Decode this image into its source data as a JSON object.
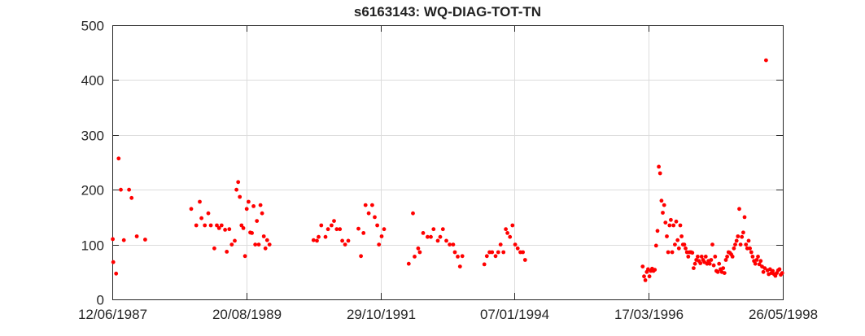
{
  "chart_data": {
    "type": "scatter",
    "title": "s6163143: WQ-DIAG-TOT-TN",
    "xlabel": "",
    "ylabel": "",
    "xlim": [
      "1987-06-12",
      "1998-05-26"
    ],
    "ylim": [
      0,
      500
    ],
    "grid": true,
    "legend": false,
    "marker_color": "#ff0000",
    "x_ticks": [
      "12/06/1987",
      "20/08/1989",
      "29/10/1991",
      "07/01/1994",
      "17/03/1996",
      "26/05/1998"
    ],
    "y_ticks": [
      "0",
      "100",
      "200",
      "300",
      "400",
      "500"
    ],
    "series": [
      {
        "points": [
          [
            "1987-06-15",
            110
          ],
          [
            "1987-06-18",
            68
          ],
          [
            "1987-07-05",
            47
          ],
          [
            "1987-07-20",
            257
          ],
          [
            "1987-08-02",
            200
          ],
          [
            "1987-08-20",
            108
          ],
          [
            "1987-09-20",
            200
          ],
          [
            "1987-10-05",
            185
          ],
          [
            "1987-11-05",
            115
          ],
          [
            "1987-12-25",
            109
          ],
          [
            "1988-09-25",
            165
          ],
          [
            "1988-10-25",
            135
          ],
          [
            "1988-11-15",
            178
          ],
          [
            "1988-11-25",
            148
          ],
          [
            "1988-12-15",
            135
          ],
          [
            "1989-01-05",
            157
          ],
          [
            "1989-01-20",
            135
          ],
          [
            "1989-02-10",
            93
          ],
          [
            "1989-02-25",
            135
          ],
          [
            "1989-03-10",
            130
          ],
          [
            "1989-03-25",
            135
          ],
          [
            "1989-04-15",
            127
          ],
          [
            "1989-04-25",
            87
          ],
          [
            "1989-05-10",
            128
          ],
          [
            "1989-05-25",
            100
          ],
          [
            "1989-06-12",
            107
          ],
          [
            "1989-06-22",
            200
          ],
          [
            "1989-07-02",
            214
          ],
          [
            "1989-07-12",
            187
          ],
          [
            "1989-07-22",
            135
          ],
          [
            "1989-08-02",
            130
          ],
          [
            "1989-08-12",
            79
          ],
          [
            "1989-08-22",
            165
          ],
          [
            "1989-09-02",
            178
          ],
          [
            "1989-09-12",
            122
          ],
          [
            "1989-09-22",
            121
          ],
          [
            "1989-10-02",
            170
          ],
          [
            "1989-10-12",
            100
          ],
          [
            "1989-10-22",
            143
          ],
          [
            "1989-11-02",
            100
          ],
          [
            "1989-11-12",
            172
          ],
          [
            "1989-11-22",
            157
          ],
          [
            "1989-12-02",
            115
          ],
          [
            "1989-12-12",
            93
          ],
          [
            "1989-12-22",
            108
          ],
          [
            "1990-01-05",
            100
          ],
          [
            "1990-09-25",
            108
          ],
          [
            "1990-10-15",
            107
          ],
          [
            "1990-10-25",
            114
          ],
          [
            "1990-11-10",
            135
          ],
          [
            "1990-12-05",
            114
          ],
          [
            "1990-12-20",
            128
          ],
          [
            "1991-01-10",
            135
          ],
          [
            "1991-01-25",
            143
          ],
          [
            "1991-02-10",
            128
          ],
          [
            "1991-03-01",
            128
          ],
          [
            "1991-03-15",
            107
          ],
          [
            "1991-04-01",
            100
          ],
          [
            "1991-04-20",
            107
          ],
          [
            "1991-06-20",
            129
          ],
          [
            "1991-07-05",
            79
          ],
          [
            "1991-07-20",
            121
          ],
          [
            "1991-08-01",
            172
          ],
          [
            "1991-08-20",
            157
          ],
          [
            "1991-09-10",
            172
          ],
          [
            "1991-09-25",
            150
          ],
          [
            "1991-10-10",
            135
          ],
          [
            "1991-10-20",
            100
          ],
          [
            "1991-11-05",
            115
          ],
          [
            "1991-11-20",
            128
          ],
          [
            "1992-04-15",
            65
          ],
          [
            "1992-05-10",
            157
          ],
          [
            "1992-05-20",
            78
          ],
          [
            "1992-06-10",
            93
          ],
          [
            "1992-06-20",
            86
          ],
          [
            "1992-07-10",
            121
          ],
          [
            "1992-08-05",
            114
          ],
          [
            "1992-08-25",
            114
          ],
          [
            "1992-09-10",
            128
          ],
          [
            "1992-10-05",
            107
          ],
          [
            "1992-10-20",
            114
          ],
          [
            "1992-11-05",
            128
          ],
          [
            "1992-11-25",
            107
          ],
          [
            "1992-12-15",
            100
          ],
          [
            "1993-01-05",
            100
          ],
          [
            "1993-01-15",
            86
          ],
          [
            "1993-02-01",
            78
          ],
          [
            "1993-02-15",
            60
          ],
          [
            "1993-03-01",
            79
          ],
          [
            "1993-07-10",
            64
          ],
          [
            "1993-07-25",
            79
          ],
          [
            "1993-08-10",
            86
          ],
          [
            "1993-08-25",
            86
          ],
          [
            "1993-09-15",
            79
          ],
          [
            "1993-10-01",
            86
          ],
          [
            "1993-10-15",
            100
          ],
          [
            "1993-11-01",
            86
          ],
          [
            "1993-11-15",
            128
          ],
          [
            "1993-11-25",
            121
          ],
          [
            "1993-12-10",
            114
          ],
          [
            "1993-12-25",
            135
          ],
          [
            "1994-01-10",
            100
          ],
          [
            "1994-01-25",
            93
          ],
          [
            "1994-02-10",
            86
          ],
          [
            "1994-02-25",
            86
          ],
          [
            "1994-03-10",
            72
          ],
          [
            "1996-02-10",
            60
          ],
          [
            "1996-02-18",
            42
          ],
          [
            "1996-02-26",
            35
          ],
          [
            "1996-03-05",
            50
          ],
          [
            "1996-03-13",
            55
          ],
          [
            "1996-03-21",
            42
          ],
          [
            "1996-03-29",
            52
          ],
          [
            "1996-04-06",
            56
          ],
          [
            "1996-04-14",
            52
          ],
          [
            "1996-04-22",
            54
          ],
          [
            "1996-04-30",
            98
          ],
          [
            "1996-05-08",
            125
          ],
          [
            "1996-05-16",
            242
          ],
          [
            "1996-05-24",
            230
          ],
          [
            "1996-06-01",
            180
          ],
          [
            "1996-06-09",
            158
          ],
          [
            "1996-06-17",
            172
          ],
          [
            "1996-06-25",
            140
          ],
          [
            "1996-07-03",
            115
          ],
          [
            "1996-07-11",
            86
          ],
          [
            "1996-07-19",
            135
          ],
          [
            "1996-07-27",
            145
          ],
          [
            "1996-08-04",
            86
          ],
          [
            "1996-08-12",
            135
          ],
          [
            "1996-08-20",
            100
          ],
          [
            "1996-08-28",
            142
          ],
          [
            "1996-09-05",
            108
          ],
          [
            "1996-09-13",
            93
          ],
          [
            "1996-09-21",
            135
          ],
          [
            "1996-09-29",
            115
          ],
          [
            "1996-10-07",
            100
          ],
          [
            "1996-10-15",
            100
          ],
          [
            "1996-10-23",
            93
          ],
          [
            "1996-10-31",
            86
          ],
          [
            "1996-11-08",
            78
          ],
          [
            "1996-11-16",
            86
          ],
          [
            "1996-11-24",
            86
          ],
          [
            "1996-12-02",
            85
          ],
          [
            "1996-12-10",
            57
          ],
          [
            "1996-12-18",
            65
          ],
          [
            "1996-12-26",
            72
          ],
          [
            "1997-01-03",
            78
          ],
          [
            "1997-01-11",
            70
          ],
          [
            "1997-01-19",
            66
          ],
          [
            "1997-01-27",
            78
          ],
          [
            "1997-02-04",
            72
          ],
          [
            "1997-02-12",
            68
          ],
          [
            "1997-02-20",
            78
          ],
          [
            "1997-02-28",
            65
          ],
          [
            "1997-03-08",
            70
          ],
          [
            "1997-03-16",
            65
          ],
          [
            "1997-03-24",
            72
          ],
          [
            "1997-04-01",
            100
          ],
          [
            "1997-04-09",
            62
          ],
          [
            "1997-04-17",
            78
          ],
          [
            "1997-04-25",
            52
          ],
          [
            "1997-05-03",
            50
          ],
          [
            "1997-05-11",
            65
          ],
          [
            "1997-05-19",
            55
          ],
          [
            "1997-05-27",
            50
          ],
          [
            "1997-06-04",
            57
          ],
          [
            "1997-06-12",
            48
          ],
          [
            "1997-06-20",
            72
          ],
          [
            "1997-06-28",
            78
          ],
          [
            "1997-07-06",
            86
          ],
          [
            "1997-07-14",
            85
          ],
          [
            "1997-07-22",
            82
          ],
          [
            "1997-07-30",
            78
          ],
          [
            "1997-08-07",
            93
          ],
          [
            "1997-08-15",
            100
          ],
          [
            "1997-08-23",
            107
          ],
          [
            "1997-08-31",
            115
          ],
          [
            "1997-09-08",
            165
          ],
          [
            "1997-09-16",
            100
          ],
          [
            "1997-09-24",
            114
          ],
          [
            "1997-10-02",
            122
          ],
          [
            "1997-10-10",
            150
          ],
          [
            "1997-10-18",
            100
          ],
          [
            "1997-10-26",
            93
          ],
          [
            "1997-11-03",
            107
          ],
          [
            "1997-11-11",
            93
          ],
          [
            "1997-11-19",
            86
          ],
          [
            "1997-11-27",
            78
          ],
          [
            "1997-12-05",
            70
          ],
          [
            "1997-12-13",
            65
          ],
          [
            "1997-12-21",
            72
          ],
          [
            "1997-12-29",
            78
          ],
          [
            "1998-01-06",
            64
          ],
          [
            "1998-01-14",
            70
          ],
          [
            "1998-01-22",
            60
          ],
          [
            "1998-01-30",
            50
          ],
          [
            "1998-02-07",
            57
          ],
          [
            "1998-02-15",
            436
          ],
          [
            "1998-02-23",
            53
          ],
          [
            "1998-03-03",
            46
          ],
          [
            "1998-03-11",
            55
          ],
          [
            "1998-03-19",
            48
          ],
          [
            "1998-03-27",
            52
          ],
          [
            "1998-04-04",
            46
          ],
          [
            "1998-04-12",
            43
          ],
          [
            "1998-04-20",
            48
          ],
          [
            "1998-04-28",
            53
          ],
          [
            "1998-05-06",
            55
          ],
          [
            "1998-05-14",
            45
          ],
          [
            "1998-05-22",
            48
          ]
        ]
      }
    ]
  }
}
